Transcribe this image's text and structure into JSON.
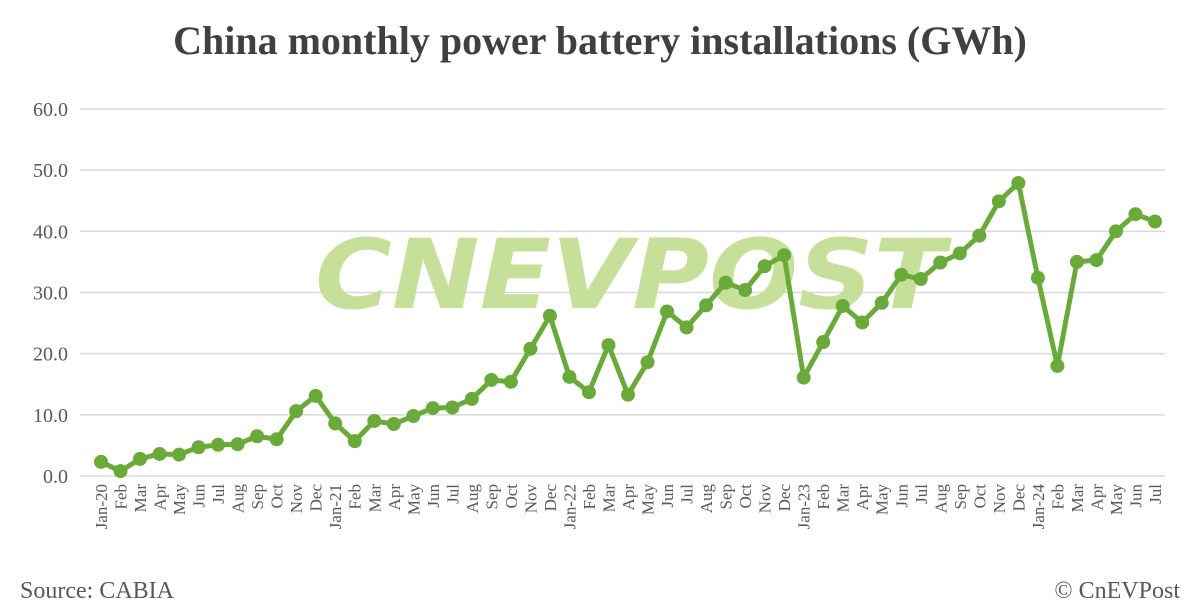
{
  "chart_data": {
    "type": "line",
    "title": "China monthly power battery installations (GWh)",
    "xlabel": "",
    "ylabel": "",
    "ylim": [
      0,
      60
    ],
    "yticks": [
      "0.0",
      "10.0",
      "20.0",
      "30.0",
      "40.0",
      "50.0",
      "60.0"
    ],
    "grid": true,
    "categories": [
      "Jan-20",
      "Feb",
      "Mar",
      "Apr",
      "May",
      "Jun",
      "Jul",
      "Aug",
      "Sep",
      "Oct",
      "Nov",
      "Dec",
      "Jan-21",
      "Feb",
      "Mar",
      "Apr",
      "May",
      "Jun",
      "Jul",
      "Aug",
      "Sep",
      "Oct",
      "Nov",
      "Dec",
      "Jan-22",
      "Feb",
      "Mar",
      "Apr",
      "May",
      "Jun",
      "Jul",
      "Aug",
      "Sep",
      "Oct",
      "Nov",
      "Dec",
      "Jan-23",
      "Feb",
      "Mar",
      "Apr",
      "May",
      "Jun",
      "Jul",
      "Aug",
      "Sep",
      "Oct",
      "Nov",
      "Dec",
      "Jan-24",
      "Feb",
      "Mar",
      "Apr",
      "May",
      "Jun",
      "Jul"
    ],
    "series": [
      {
        "values": [
          2.3,
          0.8,
          2.8,
          3.6,
          3.5,
          4.7,
          5.1,
          5.2,
          6.5,
          6.0,
          10.6,
          13.1,
          8.6,
          5.7,
          9.0,
          8.5,
          9.8,
          11.1,
          11.2,
          12.6,
          15.7,
          15.4,
          20.8,
          26.2,
          16.2,
          13.7,
          21.4,
          13.3,
          18.6,
          26.9,
          24.3,
          27.9,
          31.6,
          30.4,
          34.3,
          36.1,
          16.1,
          21.9,
          27.8,
          25.1,
          28.3,
          32.9,
          32.2,
          34.9,
          36.4,
          39.3,
          44.9,
          47.9,
          32.4,
          18.0,
          35.0,
          35.3,
          40.0,
          42.8,
          41.6
        ],
        "color": "#6aaa3a"
      }
    ]
  },
  "source": "Source: CABIA",
  "credit": "© CnEVPost",
  "watermark": "CNEVPOST",
  "colors": {
    "line": "#6aaa3a",
    "grid": "#d9d9d9",
    "watermark": "#c6e09a"
  }
}
